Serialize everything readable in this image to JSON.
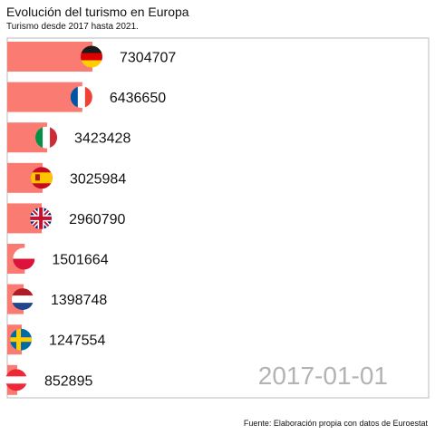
{
  "chart_data": {
    "type": "bar",
    "orientation": "horizontal",
    "title": "Evolución del turismo en Europa",
    "subtitle": "Turismo desde 2017 hasta 2021.",
    "source": "Fuente: Elaboración propia con datos de Euroestat",
    "date": "2017-01-01",
    "bar_color": "#fa7b72",
    "grid": false,
    "legend": "none",
    "xlim": [
      0,
      7304707
    ],
    "categories": [
      "Germany",
      "France",
      "Italy",
      "Spain",
      "United Kingdom",
      "Poland",
      "Netherlands",
      "Sweden",
      "Austria"
    ],
    "values": [
      7304707,
      6436650,
      3423428,
      3025984,
      2960790,
      1501664,
      1398748,
      1247554,
      852895
    ],
    "value_labels": [
      "7304707",
      "6436650",
      "3423428",
      "3025984",
      "2960790",
      "1501664",
      "1398748",
      "1247554",
      "852895"
    ],
    "flag_icons": [
      "flag-germany-icon",
      "flag-france-icon",
      "flag-italy-icon",
      "flag-spain-icon",
      "flag-uk-icon",
      "flag-poland-icon",
      "flag-netherlands-icon",
      "flag-sweden-icon",
      "flag-austria-icon"
    ]
  }
}
